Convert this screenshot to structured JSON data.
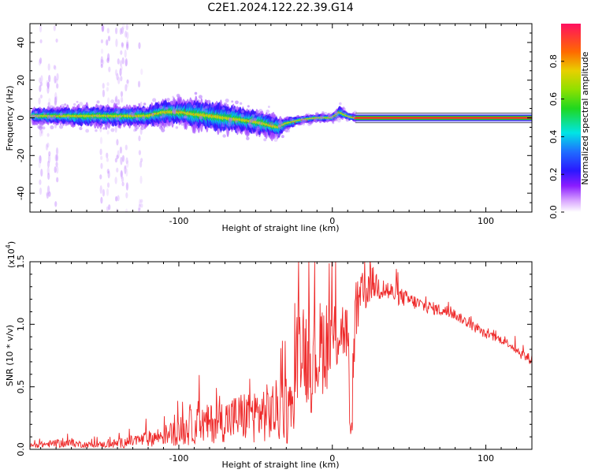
{
  "title": "C2E1.2024.122.22.39.G14",
  "colors": {
    "snr_line": "#ee2a2a",
    "frame": "#000000",
    "center_stripe": "#ff2a2a",
    "stripe_mid": "#1fd81f",
    "stripe_edge": "#3a3adc"
  },
  "chart_data": [
    {
      "type": "heatmap",
      "title": "C2E1.2024.122.22.39.G14",
      "xlabel": "Height of straight line (km)",
      "ylabel": "Frequency (Hz)",
      "xlim": [
        -197,
        130
      ],
      "ylim": [
        -50,
        50
      ],
      "xticks": [
        -100,
        0,
        100
      ],
      "yticks": [
        -40,
        -20,
        0,
        20,
        40
      ],
      "ytick_labels": [
        "-40",
        "-20",
        "0",
        "20",
        "40"
      ],
      "grid": false,
      "colorbar": {
        "label": "Normalized spectral amplitude",
        "range": [
          0,
          1
        ],
        "ticks": [
          0.0,
          0.2,
          0.4,
          0.6,
          0.8
        ],
        "tick_labels": [
          "0.0",
          "0.2",
          "0.4",
          "0.6",
          "0.8"
        ],
        "colormap": "rainbow"
      },
      "ridge": {
        "x": [
          -195,
          -180,
          -160,
          -140,
          -120,
          -110,
          -100,
          -90,
          -80,
          -70,
          -60,
          -50,
          -40,
          -35,
          -30,
          -20,
          -10,
          0,
          5,
          10,
          15
        ],
        "center_hz": [
          1,
          1,
          1,
          1,
          1,
          3,
          3,
          2,
          1,
          0,
          -1,
          -2,
          -4,
          -5,
          -3,
          -1,
          0,
          0,
          3,
          1,
          0
        ],
        "width_hz": [
          4,
          4,
          5,
          5,
          5,
          6,
          6,
          7,
          7,
          7,
          6,
          6,
          6,
          5,
          3,
          2,
          2,
          2,
          3,
          2,
          2
        ],
        "stable_from_km": 15,
        "stable_center_hz": 0
      }
    },
    {
      "type": "line",
      "xlabel": "Height of straight line (km)",
      "ylabel": "SNR (10 * v/v)",
      "multiplier_label": "(x10",
      "multiplier_exp": "4",
      "xlim": [
        -197,
        130
      ],
      "ylim": [
        0,
        1.5
      ],
      "xticks": [
        -100,
        0,
        100
      ],
      "yticks": [
        0.0,
        0.5,
        1.0,
        1.5
      ],
      "ytick_labels": [
        "0.0",
        "0.5",
        "1.0",
        "1.5"
      ],
      "grid": false,
      "series": [
        {
          "x": [
            -197,
            -190,
            -180,
            -170,
            -160,
            -150,
            -140,
            -130,
            -120,
            -110,
            -100,
            -95,
            -90,
            -80,
            -70,
            -60,
            -50,
            -40,
            -30,
            -25,
            -24,
            -20,
            -15,
            -10,
            -5,
            0,
            5,
            10,
            12,
            15,
            20,
            25,
            30,
            40,
            50,
            60,
            70,
            80,
            90,
            100,
            110,
            115,
            120,
            125,
            130
          ],
          "y": [
            0.03,
            0.04,
            0.05,
            0.05,
            0.04,
            0.04,
            0.05,
            0.07,
            0.09,
            0.12,
            0.15,
            0.18,
            0.2,
            0.22,
            0.25,
            0.28,
            0.3,
            0.32,
            0.35,
            0.3,
            0.75,
            0.95,
            0.7,
            0.8,
            0.9,
            0.9,
            1.0,
            0.95,
            0.35,
            1.1,
            1.25,
            1.35,
            1.32,
            1.25,
            1.2,
            1.15,
            1.12,
            1.08,
            1.0,
            0.92,
            0.88,
            0.85,
            0.8,
            0.75,
            0.72
          ],
          "noise": [
            0.02,
            0.03,
            0.04,
            0.04,
            0.03,
            0.03,
            0.05,
            0.06,
            0.08,
            0.1,
            0.14,
            0.18,
            0.18,
            0.2,
            0.22,
            0.25,
            0.28,
            0.3,
            0.35,
            0.35,
            0.45,
            0.5,
            0.5,
            0.5,
            0.5,
            0.45,
            0.35,
            0.3,
            0.3,
            0.3,
            0.25,
            0.18,
            0.15,
            0.1,
            0.08,
            0.07,
            0.06,
            0.05,
            0.05,
            0.04,
            0.04,
            0.04,
            0.05,
            0.06,
            0.05
          ]
        }
      ]
    }
  ]
}
